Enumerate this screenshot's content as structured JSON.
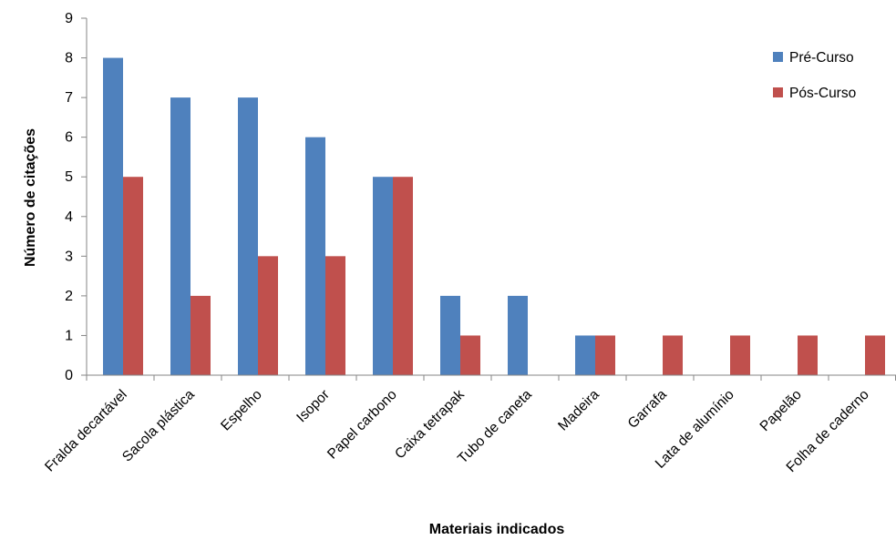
{
  "chart_data": {
    "type": "bar",
    "title": "",
    "xlabel": "Materiais indicados",
    "ylabel": "Número de citações",
    "ylim": [
      0,
      9
    ],
    "yticks": [
      "0",
      "1",
      "2",
      "3",
      "4",
      "5",
      "6",
      "7",
      "8",
      "9"
    ],
    "grid": false,
    "legend_position": "top-right",
    "categories": [
      "Fralda decartável",
      "Sacola plástica",
      "Espelho",
      "Isopor",
      "Papel carbono",
      "Caixa tetrapak",
      "Tubo de caneta",
      "Madeira",
      "Garrafa",
      "Lata de alumínio",
      "Papelão",
      "Folha de caderno"
    ],
    "series": [
      {
        "name": "Pré-Curso",
        "color": "#4f81bd",
        "values": [
          8,
          7,
          7,
          6,
          5,
          2,
          2,
          1,
          0,
          0,
          0,
          0
        ]
      },
      {
        "name": "Pós-Curso",
        "color": "#c0504d",
        "values": [
          5,
          2,
          3,
          3,
          5,
          1,
          0,
          1,
          1,
          1,
          1,
          1
        ]
      }
    ]
  }
}
